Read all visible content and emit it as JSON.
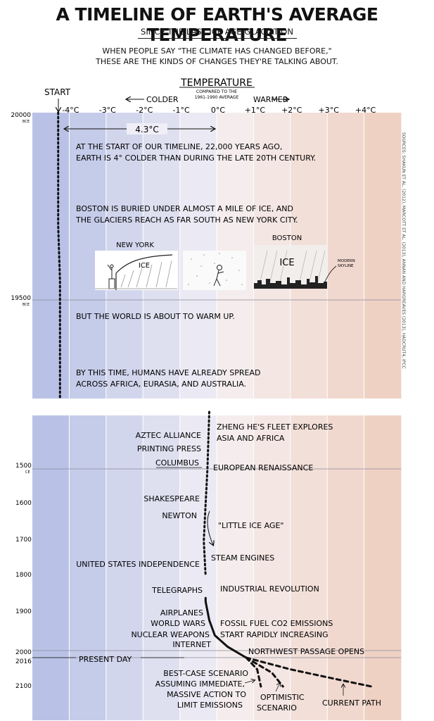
{
  "header": {
    "title": "A TIMELINE OF EARTH'S AVERAGE TEMPERATURE",
    "subtitle": "SINCE THE LAST ICE AGE GLACIATION",
    "intro_line1": "WHEN PEOPLE SAY \"THE CLIMATE HAS CHANGED BEFORE,\"",
    "intro_line2": "THESE ARE THE KINDS OF CHANGES THEY'RE TALKING ABOUT."
  },
  "axis": {
    "title": "TEMPERATURE",
    "subtitle_line1": "COMPARED TO THE",
    "subtitle_line2": "1961-1990 AVERAGE",
    "colder": "COLDER",
    "warmer": "WARMER",
    "start": "START",
    "span_label": "4.3°C",
    "ticks": [
      {
        "value": -4,
        "label": "-4°C"
      },
      {
        "value": -3,
        "label": "-3°C"
      },
      {
        "value": -2,
        "label": "-2°C"
      },
      {
        "value": -1,
        "label": "-1°C"
      },
      {
        "value": 0,
        "label": "0°C"
      },
      {
        "value": 1,
        "label": "+1°C"
      },
      {
        "value": 2,
        "label": "+2°C"
      },
      {
        "value": 3,
        "label": "+3°C"
      },
      {
        "value": 4,
        "label": "+4°C"
      }
    ],
    "sources": "SOURCES: SHAKUN ET AL. (2012), MARCOTT ET AL. (2013), ANNAN AND HARGREAVES (2013), HADCRUT4, IPCC"
  },
  "colors": {
    "coldest": "#b9c2e6",
    "neutral": "#f7f4f7",
    "warmest": "#efd1c4",
    "ink": "#111111",
    "grid": "#ffffff"
  },
  "year_labels_top": [
    {
      "year": "20000",
      "era": "BCE"
    },
    {
      "year": "19500",
      "era": "BCE"
    }
  ],
  "year_labels_bottom": [
    {
      "year": "1500",
      "era": "CE"
    },
    {
      "year": "1600",
      "era": ""
    },
    {
      "year": "1700",
      "era": ""
    },
    {
      "year": "1800",
      "era": ""
    },
    {
      "year": "1900",
      "era": ""
    },
    {
      "year": "2000",
      "era": ""
    },
    {
      "year": "2016",
      "era": ""
    },
    {
      "year": "2100",
      "era": ""
    }
  ],
  "annotations_top": [
    "AT THE START OF OUR TIMELINE, 22,000 YEARS AGO,",
    "EARTH IS 4° COLDER THAN DURING THE LATE 20TH CENTURY.",
    "BOSTON IS BURIED UNDER ALMOST A MILE OF ICE, AND",
    "THE GLACIERS REACH AS FAR SOUTH AS NEW YORK CITY.",
    "BUT THE WORLD IS ABOUT TO WARM UP.",
    "BY THIS TIME, HUMANS HAVE ALREADY SPREAD",
    "ACROSS AFRICA, EURASIA, AND AUSTRALIA."
  ],
  "panel_labels": {
    "new_york": "NEW YORK",
    "ice_left": "ICE",
    "boston": "BOSTON",
    "ice_right": "ICE",
    "modern_skyline_1": "MODERN",
    "modern_skyline_2": "SKYLINE"
  },
  "events": {
    "zheng_he_1": "ZHENG HE'S FLEET EXPLORES",
    "zheng_he_2": "ASIA AND AFRICA",
    "aztec": "AZTEC ALLIANCE",
    "printing": "PRINTING PRESS",
    "columbus": "COLUMBUS",
    "renaissance": "EUROPEAN RENAISSANCE",
    "shakespeare": "SHAKESPEARE",
    "newton": "NEWTON",
    "little_ice_age": "\"LITTLE ICE AGE\"",
    "steam": "STEAM ENGINES",
    "us_independence": "UNITED STATES INDEPENDENCE",
    "telegraphs": "TELEGRAPHS",
    "industrial": "INDUSTRIAL REVOLUTION",
    "airplanes": "AIRPLANES",
    "world_wars": "WORLD WARS",
    "nuclear": "NUCLEAR WEAPONS",
    "internet": "INTERNET",
    "fossil_1": "FOSSIL FUEL CO2 EMISSIONS",
    "fossil_2": "START RAPIDLY INCREASING",
    "northwest": "NORTHWEST PASSAGE OPENS",
    "present_day": "PRESENT DAY",
    "best_case_1": "BEST-CASE SCENARIO",
    "best_case_2": "ASSUMING IMMEDIATE,",
    "best_case_3": "MASSIVE ACTION TO",
    "best_case_4": "LIMIT EMISSIONS",
    "optimistic_1": "OPTIMISTIC",
    "optimistic_2": "SCENARIO",
    "current_path": "CURRENT PATH"
  },
  "chart_data": {
    "type": "line",
    "xlabel": "TEMPERATURE",
    "xlim": [
      -5,
      5
    ],
    "ylabel": "",
    "series": [
      {
        "points_top": [
          [
            -4.3,
            -20000
          ],
          [
            -4.3,
            -19850
          ],
          [
            -4.3,
            -19700
          ],
          [
            -4.25,
            -19550
          ],
          [
            -4.25,
            -19400
          ],
          [
            -4.25,
            -19300
          ]
        ],
        "points_bottom": [
          [
            -0.2,
            1400
          ],
          [
            -0.25,
            1500
          ],
          [
            -0.3,
            1600
          ],
          [
            -0.35,
            1700
          ],
          [
            -0.3,
            1800
          ],
          [
            -0.3,
            1870
          ],
          [
            -0.2,
            1920
          ],
          [
            -0.05,
            1960
          ],
          [
            0.3,
            1990
          ],
          [
            0.8,
            2016
          ]
        ]
      },
      {
        "name": "BEST-CASE SCENARIO",
        "points": [
          [
            0.8,
            2016
          ],
          [
            1.1,
            2050
          ],
          [
            1.2,
            2100
          ]
        ]
      },
      {
        "name": "OPTIMISTIC SCENARIO",
        "points": [
          [
            0.8,
            2016
          ],
          [
            1.5,
            2060
          ],
          [
            1.8,
            2100
          ]
        ]
      },
      {
        "name": "CURRENT PATH",
        "points": [
          [
            0.8,
            2016
          ],
          [
            2.0,
            2050
          ],
          [
            3.3,
            2080
          ],
          [
            4.2,
            2100
          ]
        ]
      }
    ]
  }
}
